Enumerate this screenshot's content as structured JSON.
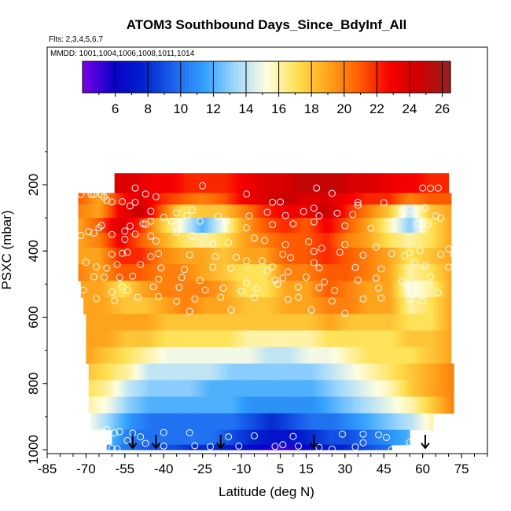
{
  "chart_data": {
    "type": "heatmap",
    "title": "ATOM3 Southbound Days_Since_BdyInf_All",
    "flights_label": "Flts: 2,3,4,5,6,7",
    "dates_label": "MMDD: 1001,1004,1006,1008,1011,1014",
    "xlabel": "Latitude (deg N)",
    "ylabel": "PSXC (mbar)",
    "xlim": [
      -85,
      85
    ],
    "ylim": [
      1000,
      100
    ],
    "x_ticks": [
      -85,
      -70,
      -55,
      -40,
      -25,
      -10,
      5,
      15,
      30,
      45,
      60,
      75
    ],
    "y_ticks": [
      200,
      400,
      600,
      800,
      1000
    ],
    "colorbar": {
      "range": [
        4,
        26.5
      ],
      "ticks": [
        6,
        8,
        10,
        12,
        14,
        16,
        18,
        20,
        22,
        24,
        26
      ],
      "colors": [
        "#7a00e6",
        "#0b00c8",
        "#0022cc",
        "#1c66ee",
        "#32a2fc",
        "#a0d8fc",
        "#fefee0",
        "#fee050",
        "#fea41c",
        "#fe6000",
        "#f80000",
        "#d00000",
        "#962020"
      ]
    },
    "rows": [
      {
        "p": [
          165,
          225
        ],
        "lat": [
          -59,
          70
        ],
        "values": [
          24,
          24,
          23,
          23,
          22,
          22,
          22,
          23,
          24,
          24,
          25,
          25,
          25,
          24,
          24,
          23,
          23,
          22,
          22
        ]
      },
      {
        "p": [
          225,
          260
        ],
        "lat": [
          -73,
          71
        ],
        "values": [
          21,
          19,
          22,
          24,
          22,
          21,
          20,
          21,
          23,
          24,
          25,
          24,
          24,
          23,
          22,
          22,
          20,
          21,
          21
        ]
      },
      {
        "p": [
          260,
          300
        ],
        "lat": [
          -73,
          71
        ],
        "values": [
          20,
          19,
          23,
          25,
          21,
          17,
          18,
          18,
          20,
          22,
          23,
          23,
          25,
          22,
          20,
          18,
          14,
          18,
          19
        ]
      },
      {
        "p": [
          300,
          345
        ],
        "lat": [
          -73,
          71
        ],
        "values": [
          19,
          21,
          24,
          22,
          18,
          15,
          12,
          15,
          19,
          21,
          22,
          21,
          23,
          21,
          19,
          16,
          13,
          17,
          19
        ]
      },
      {
        "p": [
          345,
          390
        ],
        "lat": [
          -73,
          71
        ],
        "values": [
          19,
          20,
          23,
          21,
          19,
          17,
          16,
          17,
          19,
          20,
          21,
          21,
          22,
          20,
          19,
          17,
          16,
          17,
          19
        ]
      },
      {
        "p": [
          390,
          440
        ],
        "lat": [
          -73,
          71
        ],
        "values": [
          19,
          19,
          22,
          22,
          20,
          19,
          19,
          18,
          19,
          19,
          21,
          21,
          22,
          21,
          20,
          19,
          17,
          18,
          19
        ]
      },
      {
        "p": [
          440,
          490
        ],
        "lat": [
          -73,
          71
        ],
        "values": [
          20,
          19,
          21,
          21,
          20,
          20,
          19,
          18,
          17,
          17,
          20,
          20,
          21,
          21,
          20,
          19,
          16,
          17,
          19
        ]
      },
      {
        "p": [
          490,
          540
        ],
        "lat": [
          -72,
          71
        ],
        "values": [
          19,
          19,
          17,
          19,
          20,
          20,
          20,
          19,
          17,
          17,
          19,
          19,
          21,
          20,
          19,
          19,
          15,
          16,
          19
        ]
      },
      {
        "p": [
          540,
          590
        ],
        "lat": [
          -71,
          71
        ],
        "values": [
          19,
          19,
          18,
          18,
          19,
          20,
          19,
          19,
          18,
          18,
          19,
          19,
          20,
          20,
          19,
          19,
          16,
          17,
          19
        ]
      },
      {
        "p": [
          590,
          640
        ],
        "lat": [
          -70,
          71
        ],
        "values": [
          19,
          19,
          19,
          19,
          18,
          18,
          18,
          18,
          18,
          18,
          18,
          18,
          19,
          18,
          18,
          18,
          17,
          17,
          19
        ]
      },
      {
        "p": [
          640,
          690
        ],
        "lat": [
          -70,
          71
        ],
        "values": [
          19,
          19,
          18,
          18,
          17,
          17,
          17,
          17,
          16,
          16,
          16,
          16,
          17,
          17,
          17,
          17,
          18,
          18,
          19
        ]
      },
      {
        "p": [
          690,
          740
        ],
        "lat": [
          -70,
          71
        ],
        "values": [
          19,
          18,
          17,
          16,
          15,
          15,
          15,
          15,
          15,
          14,
          14,
          15,
          15,
          16,
          17,
          17,
          17,
          18,
          19
        ]
      },
      {
        "p": [
          740,
          790
        ],
        "lat": [
          -69,
          72
        ],
        "values": [
          18,
          17,
          16,
          14,
          14,
          14,
          14,
          13,
          13,
          13,
          13,
          13,
          14,
          15,
          16,
          17,
          18,
          19,
          20
        ]
      },
      {
        "p": [
          790,
          840
        ],
        "lat": [
          -69,
          72
        ],
        "values": [
          17,
          16,
          14,
          13,
          13,
          13,
          12,
          12,
          12,
          12,
          12,
          12,
          13,
          14,
          15,
          16,
          18,
          19,
          20
        ]
      },
      {
        "p": [
          840,
          890
        ],
        "lat": [
          -69,
          72
        ],
        "values": [
          16,
          15,
          13,
          12,
          12,
          12,
          12,
          12,
          11,
          11,
          11,
          11,
          12,
          13,
          14,
          15,
          16,
          18,
          20
        ]
      },
      {
        "p": [
          890,
          940
        ],
        "lat": [
          -68,
          64
        ],
        "values": [
          15,
          13,
          11,
          10,
          10,
          10,
          10,
          10,
          9,
          8,
          9,
          10,
          10,
          11,
          12,
          13,
          14,
          16
        ]
      },
      {
        "p": [
          940,
          985
        ],
        "lat": [
          -60,
          55
        ],
        "values": [
          12,
          10,
          10,
          10,
          10,
          10,
          9,
          8,
          7,
          7,
          8,
          9,
          9,
          10,
          11,
          12
        ]
      },
      {
        "p": [
          985,
          1000
        ],
        "lat": [
          -62,
          48
        ],
        "values": [
          11,
          10,
          9,
          9,
          8,
          8,
          7,
          6,
          5,
          6,
          7,
          8,
          9,
          10
        ]
      }
    ],
    "arrows_lat": [
      -52,
      -43,
      -18,
      18,
      61
    ],
    "points": [
      [
        -51,
        210
      ],
      [
        -47,
        228
      ],
      [
        -43,
        236
      ],
      [
        -25,
        203
      ],
      [
        -8,
        228
      ],
      [
        2,
        253
      ],
      [
        5,
        252
      ],
      [
        18,
        271
      ],
      [
        19,
        210
      ],
      [
        25,
        226
      ],
      [
        35,
        253
      ],
      [
        60,
        210
      ],
      [
        63,
        211
      ],
      [
        66,
        210
      ],
      [
        -72,
        229
      ],
      [
        -68,
        229
      ],
      [
        -67,
        229
      ],
      [
        -64,
        230
      ],
      [
        -63,
        237
      ],
      [
        -62,
        247
      ],
      [
        -60,
        252
      ],
      [
        -56,
        251
      ],
      [
        -53,
        264
      ],
      [
        -51,
        253
      ],
      [
        -45,
        280
      ],
      [
        -40,
        298
      ],
      [
        -35,
        285
      ],
      [
        -31,
        293
      ],
      [
        -29,
        276
      ],
      [
        -19,
        295
      ],
      [
        -7,
        294
      ],
      [
        0,
        283
      ],
      [
        7,
        293
      ],
      [
        14,
        281
      ],
      [
        20,
        294
      ],
      [
        27,
        286
      ],
      [
        33,
        290
      ],
      [
        35,
        262
      ],
      [
        45,
        254
      ],
      [
        52,
        287
      ],
      [
        55,
        276
      ],
      [
        61,
        269
      ],
      [
        65,
        294
      ],
      [
        67,
        301
      ],
      [
        -55,
        340
      ],
      [
        -53,
        325
      ],
      [
        -48,
        318
      ],
      [
        -47,
        319
      ],
      [
        -45,
        310
      ],
      [
        -37,
        310
      ],
      [
        -26,
        310
      ],
      [
        -16,
        310
      ],
      [
        -8,
        330
      ],
      [
        2,
        320
      ],
      [
        10,
        318
      ],
      [
        18,
        312
      ],
      [
        30,
        324
      ],
      [
        40,
        331
      ],
      [
        58,
        318
      ],
      [
        62,
        320
      ],
      [
        -72,
        353
      ],
      [
        -69,
        342
      ],
      [
        -67,
        346
      ],
      [
        -65,
        330
      ],
      [
        -64,
        323
      ],
      [
        -60,
        350
      ],
      [
        -55,
        365
      ],
      [
        -51,
        349
      ],
      [
        -45,
        355
      ],
      [
        -43,
        370
      ],
      [
        -29,
        354
      ],
      [
        -21,
        379
      ],
      [
        -5,
        361
      ],
      [
        -1,
        368
      ],
      [
        7,
        381
      ],
      [
        16,
        372
      ],
      [
        21,
        392
      ],
      [
        30,
        381
      ],
      [
        42,
        388
      ],
      [
        55,
        405
      ],
      [
        59,
        399
      ],
      [
        70,
        394
      ],
      [
        72,
        411
      ],
      [
        -35,
        343
      ],
      [
        -15,
        375
      ],
      [
        -60,
        410
      ],
      [
        -56,
        407
      ],
      [
        -54,
        404
      ],
      [
        -45,
        417
      ],
      [
        -42,
        408
      ],
      [
        -30,
        412
      ],
      [
        -20,
        417
      ],
      [
        -12,
        419
      ],
      [
        -2,
        430
      ],
      [
        6,
        410
      ],
      [
        9,
        420
      ],
      [
        18,
        401
      ],
      [
        28,
        404
      ],
      [
        37,
        413
      ],
      [
        48,
        408
      ],
      [
        53,
        415
      ],
      [
        67,
        410
      ],
      [
        -70,
        434
      ],
      [
        -66,
        448
      ],
      [
        -62,
        452
      ],
      [
        -58,
        441
      ],
      [
        -49,
        441
      ],
      [
        -41,
        451
      ],
      [
        -32,
        456
      ],
      [
        -21,
        449
      ],
      [
        -14,
        452
      ],
      [
        -8,
        430
      ],
      [
        0,
        460
      ],
      [
        2,
        448
      ],
      [
        8,
        463
      ],
      [
        18,
        435
      ],
      [
        20,
        451
      ],
      [
        34,
        450
      ],
      [
        44,
        454
      ],
      [
        57,
        435
      ],
      [
        61,
        444
      ],
      [
        70,
        449
      ],
      [
        -67,
        478
      ],
      [
        -63,
        479
      ],
      [
        -57,
        480
      ],
      [
        -52,
        476
      ],
      [
        -42,
        485
      ],
      [
        -33,
        480
      ],
      [
        -26,
        489
      ],
      [
        -8,
        496
      ],
      [
        3,
        488
      ],
      [
        6,
        482
      ],
      [
        15,
        479
      ],
      [
        22,
        494
      ],
      [
        35,
        488
      ],
      [
        42,
        482
      ],
      [
        52,
        492
      ],
      [
        63,
        478
      ],
      [
        -71,
        518
      ],
      [
        -60,
        524
      ],
      [
        -56,
        508
      ],
      [
        -54,
        519
      ],
      [
        -44,
        508
      ],
      [
        -34,
        510
      ],
      [
        -24,
        518
      ],
      [
        -17,
        512
      ],
      [
        -10,
        521
      ],
      [
        -4,
        513
      ],
      [
        4,
        500
      ],
      [
        12,
        509
      ],
      [
        20,
        511
      ],
      [
        26,
        519
      ],
      [
        43,
        512
      ],
      [
        54,
        509
      ],
      [
        66,
        526
      ],
      [
        -66,
        544
      ],
      [
        -59,
        550
      ],
      [
        -50,
        540
      ],
      [
        -42,
        538
      ],
      [
        -35,
        552
      ],
      [
        -28,
        545
      ],
      [
        -18,
        540
      ],
      [
        -5,
        541
      ],
      [
        8,
        546
      ],
      [
        12,
        540
      ],
      [
        25,
        551
      ],
      [
        37,
        545
      ],
      [
        44,
        542
      ],
      [
        55,
        545
      ],
      [
        60,
        551
      ],
      [
        -30,
        582
      ],
      [
        -14,
        578
      ],
      [
        17,
        578
      ],
      [
        30,
        588
      ],
      [
        -65,
        946
      ],
      [
        -63,
        948
      ],
      [
        -62,
        939
      ],
      [
        -59,
        950
      ],
      [
        -57,
        946
      ],
      [
        -52,
        950
      ],
      [
        -49,
        961
      ],
      [
        -40,
        948
      ],
      [
        -30,
        949
      ],
      [
        -15,
        961
      ],
      [
        -5,
        958
      ],
      [
        10,
        960
      ],
      [
        29,
        953
      ],
      [
        37,
        953
      ],
      [
        43,
        955
      ],
      [
        46,
        963
      ],
      [
        73,
        953
      ],
      [
        76,
        962
      ],
      [
        -60,
        996
      ],
      [
        -58,
        997
      ],
      [
        -54,
        972
      ],
      [
        -47,
        981
      ],
      [
        -40,
        989
      ],
      [
        -28,
        988
      ],
      [
        -22,
        991
      ],
      [
        -11,
        989
      ],
      [
        3,
        990
      ],
      [
        6,
        985
      ],
      [
        12,
        989
      ],
      [
        20,
        993
      ],
      [
        25,
        998
      ],
      [
        34,
        992
      ],
      [
        37,
        979
      ],
      [
        48,
        1000
      ],
      [
        55,
        978
      ],
      [
        60,
        990
      ]
    ]
  }
}
